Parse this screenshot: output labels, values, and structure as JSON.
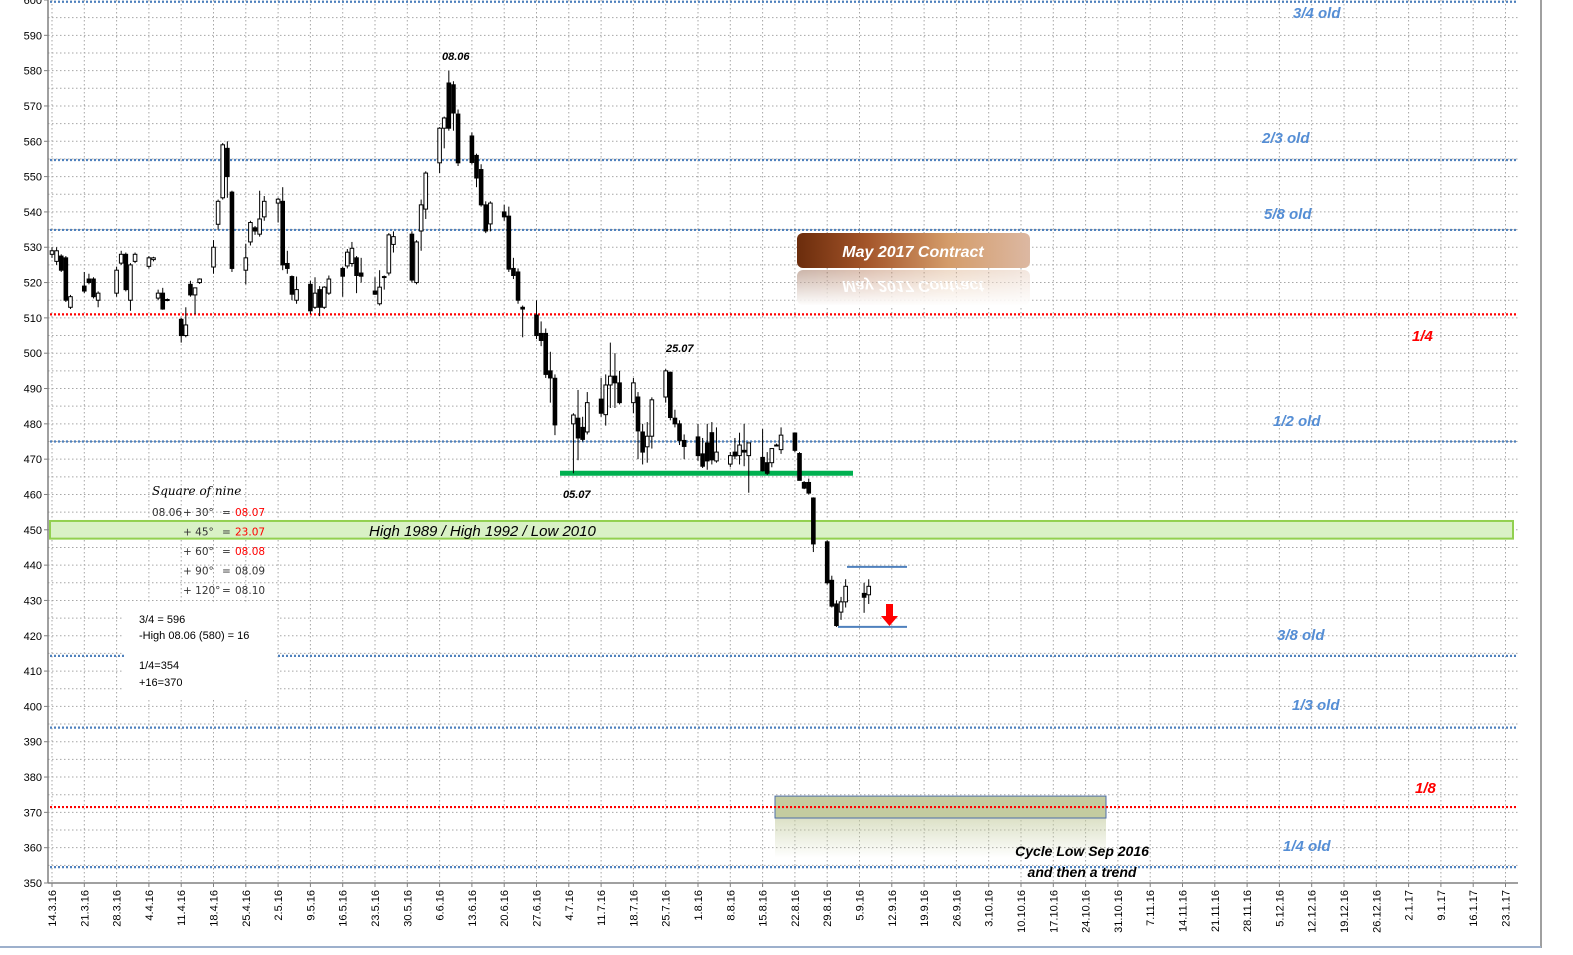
{
  "chart_data": {
    "type": "candlestick",
    "title": "May 2017 Contract",
    "ylim": [
      350,
      600
    ],
    "y_tick_step": 10,
    "grid": true,
    "x_ticks": [
      "14.3.16",
      "21.3.16",
      "28.3.16",
      "4.4.16",
      "11.4.16",
      "18.4.16",
      "25.4.16",
      "2.5.16",
      "9.5.16",
      "16.5.16",
      "23.5.16",
      "30.5.16",
      "6.6.16",
      "13.6.16",
      "20.6.16",
      "27.6.16",
      "4.7.16",
      "11.7.16",
      "18.7.16",
      "25.7.16",
      "1.8.16",
      "8.8.16",
      "15.8.16",
      "22.8.16",
      "29.8.16",
      "5.9.16",
      "12.9.16",
      "19.9.16",
      "26.9.16",
      "3.10.16",
      "10.10.16",
      "17.10.16",
      "24.10.16",
      "31.10.16",
      "7.11.16",
      "14.11.16",
      "21.11.16",
      "28.11.16",
      "5.12.16",
      "12.12.16",
      "19.12.16",
      "26.12.16",
      "2.1.17",
      "9.1.17",
      "16.1.17",
      "23.1.17"
    ],
    "candle_fields": [
      "date",
      "open",
      "high",
      "low",
      "close"
    ],
    "candles": [
      [
        "14.3.16",
        528,
        530,
        527,
        529
      ],
      [
        "15.3.16",
        526,
        530,
        525,
        529
      ],
      [
        "16.3.16",
        527.5,
        528,
        523,
        523.5
      ],
      [
        "17.3.16",
        527,
        527.5,
        514.5,
        515
      ],
      [
        "18.3.16",
        513,
        516.5,
        512.5,
        516
      ],
      [
        "21.3.16",
        519,
        523,
        517,
        517.6
      ],
      [
        "22.3.16",
        521,
        522.5,
        519.5,
        520
      ],
      [
        "23.3.16",
        521,
        521.5,
        515.5,
        516
      ],
      [
        "24.3.16",
        515,
        517.5,
        513,
        517
      ],
      [
        "28.3.16",
        517,
        524.5,
        516,
        523.5
      ],
      [
        "29.3.16",
        525.5,
        529,
        525,
        528
      ],
      [
        "30.3.16",
        528,
        528.5,
        517.5,
        518
      ],
      [
        "31.3.16",
        515,
        525.5,
        512,
        525
      ],
      [
        "1.4.16",
        526,
        528.5,
        525.5,
        528
      ],
      [
        "4.4.16",
        524.6,
        527.5,
        524,
        527
      ],
      [
        "5.4.16",
        526.5,
        527.3,
        526,
        527
      ],
      [
        "6.4.16",
        515.6,
        518,
        515,
        517
      ],
      [
        "7.4.16",
        517,
        518.5,
        512.3,
        512.5
      ],
      [
        "8.4.16",
        515.2,
        515.5,
        514.7,
        515
      ],
      [
        "11.4.16",
        509.6,
        510,
        503,
        505
      ],
      [
        "12.4.16",
        505,
        513,
        504.5,
        508
      ],
      [
        "13.4.16",
        519.5,
        520.5,
        516,
        516.5
      ],
      [
        "14.4.16",
        516.5,
        518.5,
        511,
        518.5
      ],
      [
        "15.4.16",
        520,
        521.2,
        519.6,
        521
      ],
      [
        "18.4.16",
        524.4,
        532,
        522.5,
        530
      ],
      [
        "19.4.16",
        536.5,
        543.5,
        535,
        543
      ],
      [
        "20.4.16",
        544,
        559.5,
        543.5,
        559
      ],
      [
        "21.4.16",
        558,
        560,
        544,
        550
      ],
      [
        "22.4.16",
        545.6,
        546,
        523,
        524
      ],
      [
        "25.4.16",
        523.5,
        531,
        519.5,
        527
      ],
      [
        "26.4.16",
        531.5,
        537.5,
        530.5,
        537
      ],
      [
        "27.4.16",
        535.5,
        536,
        533.5,
        534.6
      ],
      [
        "28.4.16",
        533.7,
        546,
        533,
        538
      ],
      [
        "29.4.16",
        538.6,
        544.5,
        537.5,
        543
      ],
      [
        "2.5.16",
        542.5,
        544,
        537,
        543.6
      ],
      [
        "3.5.16",
        543,
        547,
        523.5,
        525
      ],
      [
        "4.5.16",
        525.4,
        529,
        522.5,
        524
      ],
      [
        "5.5.16",
        521.7,
        522,
        515,
        516.7
      ],
      [
        "6.5.16",
        515,
        521.7,
        514,
        518
      ],
      [
        "9.5.16",
        519.5,
        520.5,
        511,
        512
      ],
      [
        "10.5.16",
        513,
        521.5,
        512.5,
        517
      ],
      [
        "11.5.16",
        518,
        519,
        510.5,
        513
      ],
      [
        "12.5.16",
        513,
        519,
        512.5,
        518.7
      ],
      [
        "13.5.16",
        517,
        522,
        516.5,
        521
      ],
      [
        "16.5.16",
        524,
        524.5,
        516,
        521.8
      ],
      [
        "17.5.16",
        524.7,
        529.5,
        524,
        528.6
      ],
      [
        "18.5.16",
        525.4,
        531.5,
        524.5,
        529.7
      ],
      [
        "19.5.16",
        527,
        527.5,
        517,
        522
      ],
      [
        "20.5.16",
        522.7,
        527,
        520,
        521.8
      ],
      [
        "23.5.16",
        517.6,
        521.5,
        516.5,
        516.7
      ],
      [
        "24.5.16",
        514,
        523.5,
        513.5,
        518.7
      ],
      [
        "25.5.16",
        521.5,
        522,
        518,
        521.7
      ],
      [
        "26.5.16",
        522.7,
        534,
        522,
        533.5
      ],
      [
        "27.5.16",
        530.8,
        534.5,
        528.5,
        533
      ],
      [
        "31.5.16",
        533.7,
        534.5,
        520,
        520.7
      ],
      [
        "1.6.16",
        520,
        532,
        519.5,
        531.5
      ],
      [
        "2.6.16",
        534.6,
        543.5,
        529,
        542
      ],
      [
        "3.6.16",
        540.8,
        551.5,
        538,
        551
      ],
      [
        "6.6.16",
        553.9,
        564,
        551,
        563.7
      ],
      [
        "7.6.16",
        563.7,
        567,
        558,
        566.6
      ],
      [
        "8.6.16",
        576.5,
        580,
        563,
        563.7
      ],
      [
        "9.6.16",
        576,
        577,
        563,
        568
      ],
      [
        "10.6.16",
        567.7,
        569,
        553,
        553.9
      ],
      [
        "13.6.16",
        561.5,
        562.5,
        553.5,
        554
      ],
      [
        "14.6.16",
        556,
        556.5,
        547,
        549.6
      ],
      [
        "15.6.16",
        552,
        553.5,
        541.5,
        542
      ],
      [
        "16.6.16",
        542,
        543,
        534,
        534.6
      ],
      [
        "17.6.16",
        536.6,
        543,
        534.5,
        542.5
      ],
      [
        "20.6.16",
        540,
        542,
        537.5,
        538.6
      ],
      [
        "21.6.16",
        538.8,
        541.5,
        523,
        523.8
      ],
      [
        "22.6.16",
        524,
        527,
        521,
        522
      ],
      [
        "23.6.16",
        523,
        524,
        514,
        515
      ],
      [
        "24.6.16",
        513,
        513.5,
        504.5,
        512.5
      ],
      [
        "27.6.16",
        510.8,
        515,
        504,
        505
      ],
      [
        "28.6.16",
        505.6,
        509,
        502,
        503.6
      ],
      [
        "29.6.16",
        505.6,
        507,
        493,
        494
      ],
      [
        "30.6.16",
        495,
        500.4,
        486,
        493
      ],
      [
        "1.7.16",
        492.9,
        494,
        476.8,
        479.7
      ],
      [
        "5.7.16",
        480,
        483,
        466,
        482.5
      ],
      [
        "6.7.16",
        481.6,
        489.6,
        469.7,
        476
      ],
      [
        "7.7.16",
        479,
        482,
        475,
        475.6
      ],
      [
        "8.7.16",
        477.7,
        489,
        477,
        486
      ],
      [
        "11.7.16",
        487,
        493,
        482,
        483
      ],
      [
        "12.7.16",
        482.6,
        494,
        479.5,
        491
      ],
      [
        "13.7.16",
        491,
        503,
        484.5,
        493.5
      ],
      [
        "14.7.16",
        493.5,
        500,
        484.5,
        491.6
      ],
      [
        "15.7.16",
        491.6,
        495,
        485.5,
        486
      ],
      [
        "18.7.16",
        486,
        493,
        483,
        491.6
      ],
      [
        "19.7.16",
        487.6,
        489,
        470,
        478
      ],
      [
        "20.7.16",
        477.7,
        480,
        468.5,
        472
      ],
      [
        "21.7.16",
        473.5,
        480.5,
        469,
        476.5
      ],
      [
        "22.7.16",
        476.5,
        487.5,
        473,
        486.8
      ],
      [
        "25.7.16",
        487.6,
        495.5,
        486,
        495
      ],
      [
        "26.7.16",
        494.6,
        494.8,
        481,
        481.8
      ],
      [
        "27.7.16",
        481.6,
        484,
        479,
        480
      ],
      [
        "28.7.16",
        480,
        481,
        474,
        475.3
      ],
      [
        "29.7.16",
        475.3,
        477,
        470,
        473.6
      ],
      [
        "1.8.16",
        476.3,
        480,
        469.5,
        471
      ],
      [
        "2.8.16",
        471.5,
        476,
        467.5,
        468
      ],
      [
        "3.8.16",
        474.6,
        480,
        467,
        469.5
      ],
      [
        "4.8.16",
        477.5,
        480.5,
        468.5,
        469.8
      ],
      [
        "5.8.16",
        469.5,
        479,
        469,
        472
      ],
      [
        "8.8.16",
        468.6,
        472,
        467.7,
        471
      ],
      [
        "9.8.16",
        472,
        476,
        470,
        470.9
      ],
      [
        "10.8.16",
        471,
        477.5,
        468.5,
        474
      ],
      [
        "11.8.16",
        472.5,
        480,
        468,
        472
      ],
      [
        "12.8.16",
        471,
        474.6,
        460.5,
        474.6
      ],
      [
        "15.8.16",
        470.5,
        478.5,
        466.5,
        466.7
      ],
      [
        "16.8.16",
        469,
        472,
        465.5,
        466
      ],
      [
        "17.8.16",
        469,
        473,
        467.7,
        473
      ],
      [
        "18.8.16",
        474,
        474.4,
        473.6,
        474
      ],
      [
        "19.8.16",
        472.7,
        479,
        471.5,
        476.8
      ],
      [
        "22.8.16",
        477.4,
        477.5,
        472,
        472.5
      ],
      [
        "23.8.16",
        471.6,
        472,
        464,
        464
      ],
      [
        "24.8.16",
        463.4,
        463.8,
        461.5,
        461.8
      ],
      [
        "25.8.16",
        463.4,
        464.5,
        460,
        460.4
      ],
      [
        "26.8.16",
        459,
        459.2,
        443.7,
        446
      ],
      [
        "29.8.16",
        446.6,
        447,
        434.5,
        435
      ],
      [
        "30.8.16",
        435.7,
        437,
        428,
        428.4
      ],
      [
        "31.8.16",
        429,
        430,
        422.5,
        422.9
      ],
      [
        "1.9.16",
        426.7,
        431,
        424.5,
        429.6
      ],
      [
        "2.9.16",
        429.6,
        436,
        428,
        434
      ],
      [
        "6.9.16",
        432,
        435,
        426.5,
        430.9
      ],
      [
        "7.9.16",
        431.6,
        436,
        429,
        434
      ]
    ],
    "levels": [
      {
        "label": "3/4 old",
        "value": 599.5,
        "color": "#4f81bd",
        "label_color": "#558ed5"
      },
      {
        "label": "2/3 old",
        "value": 554.7,
        "color": "#4f81bd",
        "label_color": "#558ed5"
      },
      {
        "label": "5/8 old",
        "value": 534.9,
        "color": "#4f81bd",
        "label_color": "#558ed5"
      },
      {
        "label": "1/4",
        "value": 511,
        "color": "#ff0000",
        "label_color": "#ff0000"
      },
      {
        "label": "1/2 old",
        "value": 475,
        "color": "#4f81bd",
        "label_color": "#558ed5"
      },
      {
        "label": "3/8 old",
        "value": 414.3,
        "color": "#4f81bd",
        "label_color": "#558ed5"
      },
      {
        "label": "1/3 old",
        "value": 394,
        "color": "#4f81bd",
        "label_color": "#558ed5"
      },
      {
        "label": "1/8",
        "value": 371.5,
        "color": "#ff0000",
        "label_color": "#ff0000"
      },
      {
        "label": "1/4 old",
        "value": 354.5,
        "color": "#4f81bd",
        "label_color": "#558ed5"
      }
    ],
    "zones": {
      "band_label": "High 1989 / High 1992 / Low 2010",
      "band_range": [
        447.5,
        452.5
      ],
      "band_color": "#92d050",
      "support_value": 466,
      "support_color": "#00b050",
      "target_range": [
        368.4,
        374.6
      ],
      "target_color": "#c4cca0",
      "range_top": 439.5,
      "range_bottom": 422.5,
      "arrow_color": "#ff0000"
    },
    "annotations": {
      "high_label": "08.06",
      "mid_label": "25.07",
      "low_label": "05.07",
      "cycle_line1": "Cycle Low Sep 2016",
      "cycle_line2": "and then a trend"
    }
  },
  "square_of_nine": {
    "title": "Square of nine",
    "start": "08.06",
    "rows": [
      {
        "angle": "+ 30°",
        "eq": "=",
        "date": "08.07",
        "color": "#ff0000"
      },
      {
        "angle": "+ 45°",
        "eq": "=",
        "date": "23.07",
        "color": "#ff0000"
      },
      {
        "angle": "+ 60°",
        "eq": "=",
        "date": "08.08",
        "color": "#ff0000"
      },
      {
        "angle": "+ 90°",
        "eq": "=",
        "date": "08.09",
        "color": "#333333"
      },
      {
        "angle": "+ 120°",
        "eq": "=",
        "date": "08.10",
        "color": "#333333"
      }
    ]
  },
  "calc_note": {
    "lines": [
      "3/4 =    596",
      "-High 08.06 (580) = 16",
      "1/4=354",
      "+16=370"
    ]
  }
}
